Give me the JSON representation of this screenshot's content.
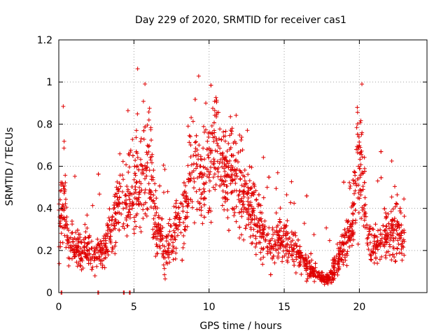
{
  "chart_data": {
    "type": "scatter",
    "title": "Day 229 of 2020, SRMTID for receiver cas1",
    "xlabel": "GPS time / hours",
    "ylabel": "SRMTID / TECUs",
    "xlim": [
      0,
      24.5
    ],
    "ylim": [
      0,
      1.2
    ],
    "x_ticks": [
      0,
      5,
      10,
      15,
      20
    ],
    "x_tick_labels": [
      "0",
      "5",
      "10",
      "15",
      "20"
    ],
    "y_ticks": [
      0,
      0.2,
      0.4,
      0.6,
      0.8,
      1.0,
      1.2
    ],
    "y_tick_labels": [
      "0",
      "0.2",
      "0.4",
      "0.6",
      "0.8",
      "1",
      "1.2"
    ],
    "grid": true,
    "marker": "+",
    "series_name": "SRMTID",
    "series_color": "#e00000",
    "envelope_hours": [
      0.0,
      0.3,
      0.6,
      1.0,
      1.5,
      2.0,
      2.5,
      3.0,
      3.5,
      3.8,
      4.2,
      4.6,
      5.0,
      5.5,
      6.0,
      6.5,
      7.0,
      7.5,
      8.0,
      8.5,
      9.0,
      9.5,
      10.0,
      10.5,
      11.0,
      11.5,
      12.0,
      12.5,
      13.0,
      13.5,
      14.0,
      14.5,
      15.0,
      15.5,
      16.0,
      16.5,
      17.0,
      17.5,
      18.0,
      18.5,
      19.0,
      19.5,
      19.8,
      20.2,
      20.5,
      21.0,
      21.5,
      22.0,
      22.5,
      23.0
    ],
    "envelope_center": [
      0.3,
      0.5,
      0.25,
      0.22,
      0.2,
      0.2,
      0.18,
      0.2,
      0.3,
      0.38,
      0.45,
      0.48,
      0.5,
      0.55,
      0.62,
      0.32,
      0.2,
      0.25,
      0.32,
      0.45,
      0.6,
      0.55,
      0.62,
      0.7,
      0.55,
      0.58,
      0.5,
      0.42,
      0.4,
      0.32,
      0.22,
      0.25,
      0.27,
      0.22,
      0.17,
      0.13,
      0.09,
      0.07,
      0.07,
      0.14,
      0.22,
      0.3,
      0.55,
      0.6,
      0.3,
      0.22,
      0.25,
      0.3,
      0.28,
      0.25
    ],
    "envelope_spread": [
      0.15,
      0.2,
      0.1,
      0.08,
      0.08,
      0.07,
      0.07,
      0.08,
      0.12,
      0.14,
      0.16,
      0.18,
      0.2,
      0.22,
      0.22,
      0.14,
      0.1,
      0.1,
      0.12,
      0.15,
      0.2,
      0.22,
      0.25,
      0.25,
      0.2,
      0.2,
      0.18,
      0.15,
      0.15,
      0.12,
      0.08,
      0.08,
      0.1,
      0.08,
      0.06,
      0.05,
      0.03,
      0.025,
      0.03,
      0.06,
      0.08,
      0.12,
      0.22,
      0.22,
      0.12,
      0.1,
      0.1,
      0.12,
      0.14,
      0.12
    ],
    "num_points": 2200,
    "zero_values_hours": [
      0.15,
      2.6,
      4.3,
      4.7
    ]
  }
}
